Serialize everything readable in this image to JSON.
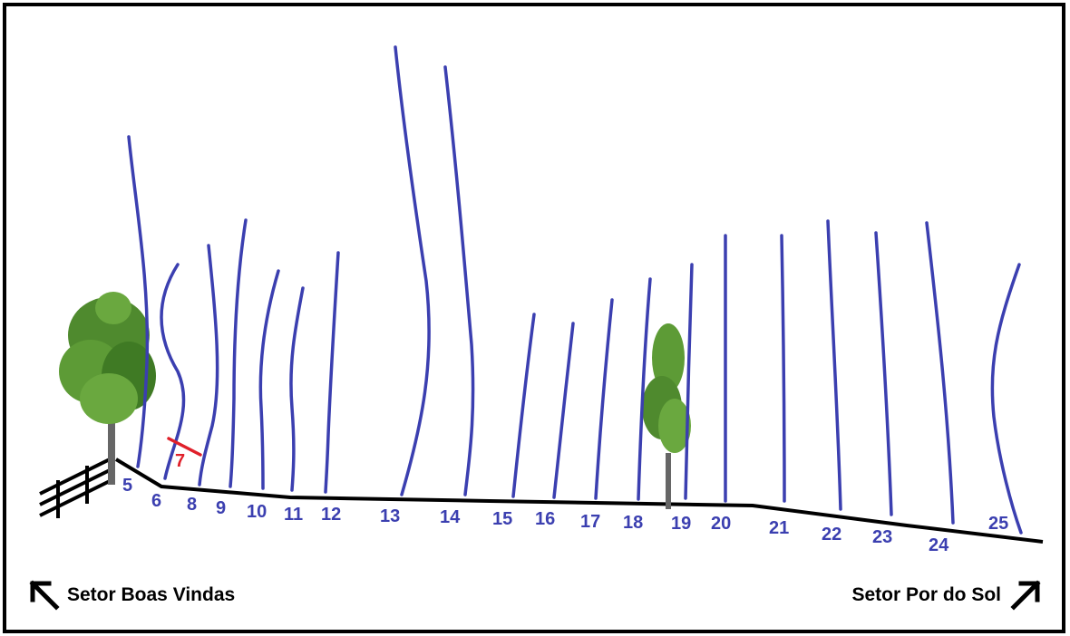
{
  "routes": [
    {
      "label": "5",
      "color": "#3b3fb0"
    },
    {
      "label": "6",
      "color": "#3b3fb0"
    },
    {
      "label": "7",
      "color": "#e0202a"
    },
    {
      "label": "8",
      "color": "#3b3fb0"
    },
    {
      "label": "9",
      "color": "#3b3fb0"
    },
    {
      "label": "10",
      "color": "#3b3fb0"
    },
    {
      "label": "11",
      "color": "#3b3fb0"
    },
    {
      "label": "12",
      "color": "#3b3fb0"
    },
    {
      "label": "13",
      "color": "#3b3fb0"
    },
    {
      "label": "14",
      "color": "#3b3fb0"
    },
    {
      "label": "15",
      "color": "#3b3fb0"
    },
    {
      "label": "16",
      "color": "#3b3fb0"
    },
    {
      "label": "17",
      "color": "#3b3fb0"
    },
    {
      "label": "18",
      "color": "#3b3fb0"
    },
    {
      "label": "19",
      "color": "#3b3fb0"
    },
    {
      "label": "20",
      "color": "#3b3fb0"
    },
    {
      "label": "21",
      "color": "#3b3fb0"
    },
    {
      "label": "22",
      "color": "#3b3fb0"
    },
    {
      "label": "23",
      "color": "#3b3fb0"
    },
    {
      "label": "24",
      "color": "#3b3fb0"
    },
    {
      "label": "25",
      "color": "#3b3fb0"
    }
  ],
  "captions": {
    "left": "Setor Boas Vindas",
    "right": "Setor Por do Sol"
  },
  "icons": {
    "left_arrow": "arrow-up-left-icon",
    "right_arrow": "arrow-up-right-icon",
    "trees": "tree-icon",
    "fence": "fence-icon"
  }
}
